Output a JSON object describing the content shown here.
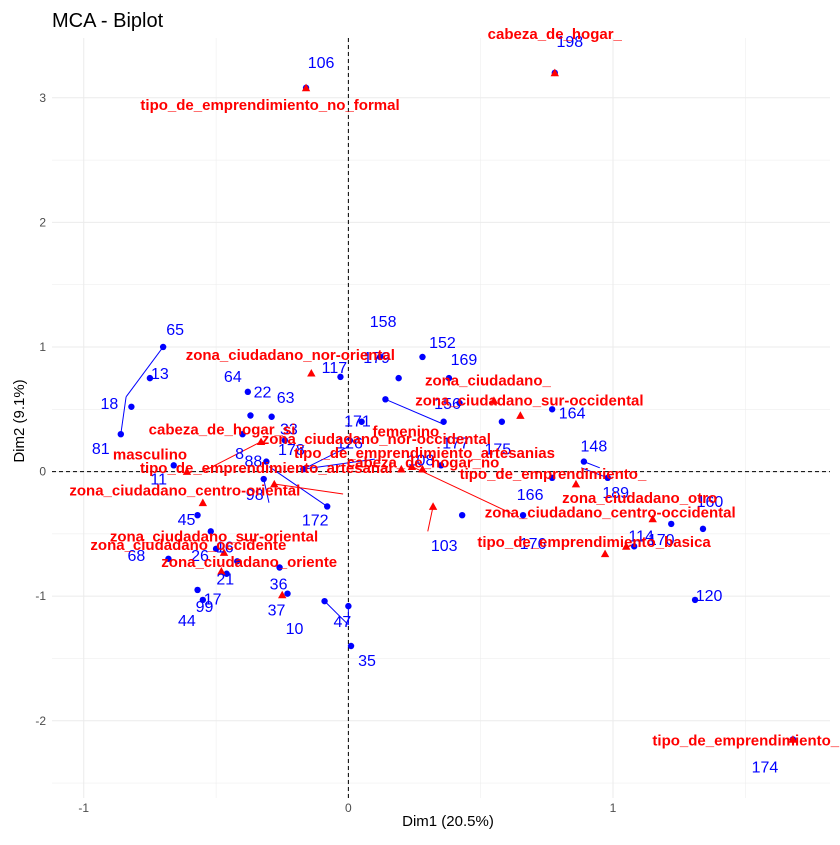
{
  "chart_data": {
    "type": "scatter",
    "title": "MCA - Biplot",
    "xlabel": "Dim1 (20.5%)",
    "ylabel": "Dim2 (9.1%)",
    "xlim": [
      -1.12,
      1.82
    ],
    "ylim": [
      -2.62,
      3.48
    ],
    "x_ticks": [
      -1,
      0,
      1
    ],
    "y_ticks": [
      -2,
      -1,
      0,
      1,
      2,
      3
    ],
    "grid": true,
    "reference_lines": {
      "x": 0,
      "y": 0
    },
    "colors": {
      "individuals": "#0000ff",
      "variables": "#ff0000",
      "grid": "#ebebeb",
      "reference": "#000000"
    },
    "individuals": [
      {
        "label": "106",
        "x": -0.16,
        "y": 3.08
      },
      {
        "label": "198",
        "x": 0.78,
        "y": 3.2
      },
      {
        "label": "65",
        "x": -0.7,
        "y": 1.0
      },
      {
        "label": "13",
        "x": -0.75,
        "y": 0.75
      },
      {
        "label": "18",
        "x": -0.82,
        "y": 0.52
      },
      {
        "label": "81",
        "x": -0.86,
        "y": 0.3
      },
      {
        "label": "158",
        "x": 0.12,
        "y": 0.92
      },
      {
        "label": "152",
        "x": 0.28,
        "y": 0.92
      },
      {
        "label": "117",
        "x": -0.03,
        "y": 0.76
      },
      {
        "label": "179",
        "x": 0.19,
        "y": 0.75
      },
      {
        "label": "169",
        "x": 0.38,
        "y": 0.75
      },
      {
        "label": "171",
        "x": 0.14,
        "y": 0.58
      },
      {
        "label": "156",
        "x": 0.42,
        "y": 0.55
      },
      {
        "label": "126",
        "x": 0.05,
        "y": 0.4
      },
      {
        "label": "177",
        "x": 0.36,
        "y": 0.4
      },
      {
        "label": "175",
        "x": 0.58,
        "y": 0.4
      },
      {
        "label": "164",
        "x": 0.77,
        "y": 0.5
      },
      {
        "label": "64",
        "x": -0.38,
        "y": 0.64
      },
      {
        "label": "22",
        "x": -0.37,
        "y": 0.45
      },
      {
        "label": "63",
        "x": -0.29,
        "y": 0.44
      },
      {
        "label": "8",
        "x": -0.4,
        "y": 0.3
      },
      {
        "label": "33",
        "x": -0.24,
        "y": 0.25
      },
      {
        "label": "88",
        "x": -0.31,
        "y": 0.08
      },
      {
        "label": "178",
        "x": -0.17,
        "y": 0.02
      },
      {
        "label": "108",
        "x": 0.35,
        "y": 0.05
      },
      {
        "label": "148",
        "x": 0.89,
        "y": 0.08
      },
      {
        "label": "189",
        "x": 0.98,
        "y": -0.05
      },
      {
        "label": "166",
        "x": 0.77,
        "y": -0.05
      },
      {
        "label": "11",
        "x": -0.66,
        "y": 0.05
      },
      {
        "label": "98",
        "x": -0.32,
        "y": -0.06
      },
      {
        "label": "172",
        "x": -0.08,
        "y": -0.28
      },
      {
        "label": "45",
        "x": -0.57,
        "y": -0.35
      },
      {
        "label": "16",
        "x": -0.52,
        "y": -0.48
      },
      {
        "label": "26",
        "x": -0.5,
        "y": -0.62
      },
      {
        "label": "21",
        "x": -0.42,
        "y": -0.72
      },
      {
        "label": "36",
        "x": -0.26,
        "y": -0.77
      },
      {
        "label": "68",
        "x": -0.68,
        "y": -0.7
      },
      {
        "label": "17",
        "x": -0.46,
        "y": -0.82
      },
      {
        "label": "37",
        "x": -0.23,
        "y": -0.98
      },
      {
        "label": "99",
        "x": -0.57,
        "y": -0.95
      },
      {
        "label": "44",
        "x": -0.55,
        "y": -1.03
      },
      {
        "label": "10",
        "x": -0.09,
        "y": -1.04
      },
      {
        "label": "47",
        "x": 0.0,
        "y": -1.08
      },
      {
        "label": "35",
        "x": 0.01,
        "y": -1.4
      },
      {
        "label": "103",
        "x": 0.43,
        "y": -0.35
      },
      {
        "label": "176",
        "x": 0.66,
        "y": -0.35
      },
      {
        "label": "114",
        "x": 1.08,
        "y": -0.6
      },
      {
        "label": "170",
        "x": 1.22,
        "y": -0.42
      },
      {
        "label": "160",
        "x": 1.34,
        "y": -0.46
      },
      {
        "label": "120",
        "x": 1.31,
        "y": -1.03
      },
      {
        "label": "174",
        "x": 1.68,
        "y": -2.15
      }
    ],
    "variables": [
      {
        "label": "cabeza_de_hogar_",
        "x": 0.78,
        "y": 3.2
      },
      {
        "label": "tipo_de_emprendimiento_no_formal",
        "x": -0.16,
        "y": 3.08
      },
      {
        "label": "zona_ciudadano_nor-oriental",
        "x": -0.14,
        "y": 0.79
      },
      {
        "label": "zona_ciudadano_",
        "x": 0.55,
        "y": 0.57
      },
      {
        "label": "zona_ciudadano_sur-occidental",
        "x": 0.65,
        "y": 0.45
      },
      {
        "label": "cabeza_de_hogar_si",
        "x": -0.33,
        "y": 0.24
      },
      {
        "label": "masculino",
        "x": -0.61,
        "y": 0.0
      },
      {
        "label": "tipo_de_emprendimiento_artesanias",
        "x": 0.28,
        "y": 0.02
      },
      {
        "label": "tipo_de_emprendimiento_artesanal",
        "x": -0.28,
        "y": -0.1
      },
      {
        "label": "zona_ciudadano_nor-occidental",
        "x": 0.2,
        "y": 0.02
      },
      {
        "label": "tipo_de_emprendimiento_",
        "x": 0.86,
        "y": -0.1
      },
      {
        "label": "zona_ciudadano_centro-oriental",
        "x": -0.55,
        "y": -0.25
      },
      {
        "label": "femenino",
        "x": 0.24,
        "y": 0.04
      },
      {
        "label": "zona_ciudadano_otro",
        "x": 1.15,
        "y": -0.38
      },
      {
        "label": "zona_ciudadano_sur-oriental",
        "x": -0.47,
        "y": -0.65
      },
      {
        "label": "cabeza_de_hogar_no",
        "x": 0.32,
        "y": -0.28
      },
      {
        "label": "zona_ciudadano_centro-occidental",
        "x": 1.05,
        "y": -0.6
      },
      {
        "label": "tipo_de_emprendimiento_basica",
        "x": 0.97,
        "y": -0.66
      },
      {
        "label": "zona_ciudadano_occidente",
        "x": -0.48,
        "y": -0.8
      },
      {
        "label": "zona_ciudadano_oriente",
        "x": -0.25,
        "y": -0.99
      },
      {
        "label": "tipo_de_emprendimiento_no formal",
        "x": 1.68,
        "y": -2.15
      }
    ]
  }
}
